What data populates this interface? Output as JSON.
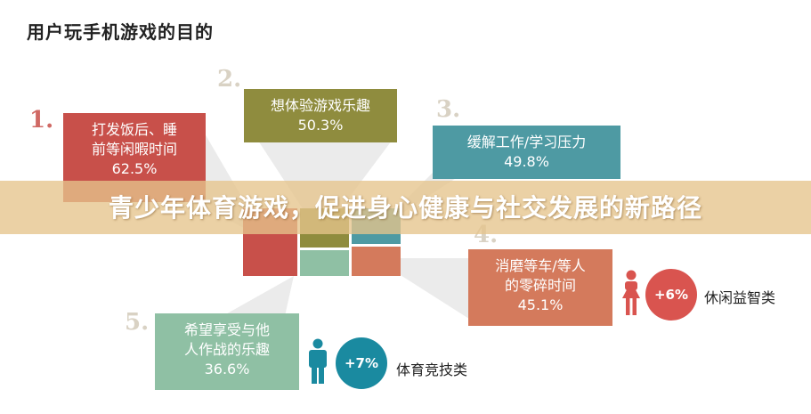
{
  "title": "用户玩手机游戏的目的",
  "banner": "青少年体育游戏，促进身心健康与社交发展的新路径",
  "chart_data": {
    "type": "bar",
    "title": "用户玩手机游戏的目的",
    "unit": "%",
    "items": [
      {
        "rank": "1.",
        "label": "打发饭后、睡\n前等闲暇时间",
        "value_text": "62.5%",
        "value": 62.5,
        "color": "#c8504a"
      },
      {
        "rank": "2.",
        "label": "想体验游戏乐趣",
        "value_text": "50.3%",
        "value": 50.3,
        "color": "#8f8c3e"
      },
      {
        "rank": "3.",
        "label": "缓解工作/学习压力",
        "value_text": "49.8%",
        "value": 49.8,
        "color": "#4e9aa3"
      },
      {
        "rank": "4.",
        "label": "消磨等车/等人\n的零碎时间",
        "value_text": "45.1%",
        "value": 45.1,
        "color": "#d47a5c"
      },
      {
        "rank": "5.",
        "label": "希望享受与他\n人作战的乐趣",
        "value_text": "36.6%",
        "value": 36.6,
        "color": "#8fc0a4"
      }
    ]
  },
  "badges": [
    {
      "value": "+6%",
      "label": "休闲益智类",
      "color": "#d9544f",
      "person": "female-icon"
    },
    {
      "value": "+7%",
      "label": "体育竞技类",
      "color": "#1a8aa0",
      "person": "male-icon"
    }
  ]
}
